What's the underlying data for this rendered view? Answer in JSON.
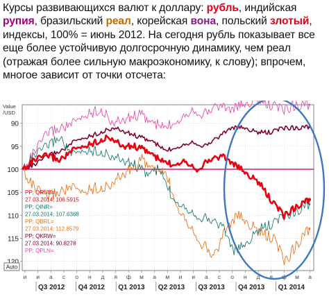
{
  "caption": {
    "p1": "Курсы развивающихся валют к доллару: ",
    "rub": "рубль",
    "p2": ", индийская ",
    "inr": "рупия",
    "p3": ", бразильский ",
    "brl": "реал",
    "p4": ", корейская ",
    "krw": "вона",
    "p5": ", польский ",
    "pln": "злотый",
    "p6": ", индексы, 100% = июнь 2012. На сегодня рубль показывает все еще более устойчивую долгосрочную динамику, чем реал (отражая более сильную макроэкономику, к слову); впрочем, многое зависит от точки отсчета:"
  },
  "colors": {
    "rub": "#e8000f",
    "inr": "#1d7a70",
    "brl": "#e8731c",
    "krw": "#800030",
    "pln": "#e64fa6",
    "reference": "#e0006a",
    "ellipse": "#3b78c2"
  },
  "chart_data": {
    "type": "line",
    "y_axis": {
      "label": "Value\n/USD",
      "ticks": [
        90,
        95,
        100,
        105,
        110,
        115,
        120
      ],
      "ylim": [
        86,
        122
      ],
      "inverted": true
    },
    "x_axis": {
      "month_ticks": [
        "и",
        "и",
        "а",
        "с",
        "о",
        "н",
        "д",
        "я",
        "ф",
        "м",
        "а",
        "м",
        "и",
        "и",
        "а",
        "с",
        "о",
        "н",
        "д",
        "я",
        "ф",
        "м",
        "а"
      ],
      "quarters": [
        "Q3 2012",
        "Q4 2012",
        "Q1 2013",
        "Q2 2013",
        "Q3 2013",
        "Q4 2013",
        "Q1 2014"
      ]
    },
    "reference_line": 100,
    "series": [
      {
        "key": "inr",
        "name": "QINR=",
        "values": [
          100,
          97,
          95,
          93,
          97,
          96,
          96,
          97,
          98,
          99,
          101,
          100,
          106,
          108,
          110,
          111,
          112,
          118,
          116,
          113,
          112,
          110,
          109,
          107.6
        ]
      },
      {
        "key": "brl",
        "name": "QBRL=",
        "values": [
          100,
          104,
          106,
          105,
          104,
          105,
          104,
          104,
          102,
          100,
          98,
          100,
          101,
          108,
          112,
          116,
          119,
          113,
          110,
          112,
          114,
          115,
          120,
          116,
          112.9
        ]
      },
      {
        "key": "krw",
        "name": "QKRW=",
        "values": [
          100,
          99,
          97,
          96,
          94,
          93,
          92,
          91,
          92,
          93,
          94,
          96,
          95,
          94,
          95,
          93,
          91,
          91,
          92,
          92,
          91,
          91,
          90.8
        ]
      },
      {
        "key": "pln",
        "name": "QPLN=",
        "values": [
          100,
          96,
          92,
          91,
          90,
          88,
          87,
          90,
          89,
          88,
          90,
          91,
          89,
          87,
          88,
          86,
          87,
          86,
          85,
          86,
          87,
          86,
          86
        ]
      },
      {
        "key": "rub",
        "name": "QRUB=",
        "values": [
          100,
          98,
          97,
          98,
          96,
          95,
          94,
          93,
          95,
          95,
          96,
          98,
          99,
          98,
          100,
          98,
          97,
          99,
          101,
          103,
          107,
          110,
          108,
          106.6
        ]
      }
    ],
    "legend": [
      {
        "line1": "PP; QRUB=",
        "line2": "27.03.2014; 106.5915"
      },
      {
        "line1": "PP; QINR=",
        "line2": "27.03.2014; 107.6368"
      },
      {
        "line1": "PP; QBRL=",
        "line2": "27.03.2014; 112.8579"
      },
      {
        "line1": "PP; QKRW=",
        "line2": "27.03.2014; 90.8278"
      },
      {
        "line1": "PP; QPLN=",
        "line2": ""
      }
    ],
    "auto_label": "Auto"
  }
}
